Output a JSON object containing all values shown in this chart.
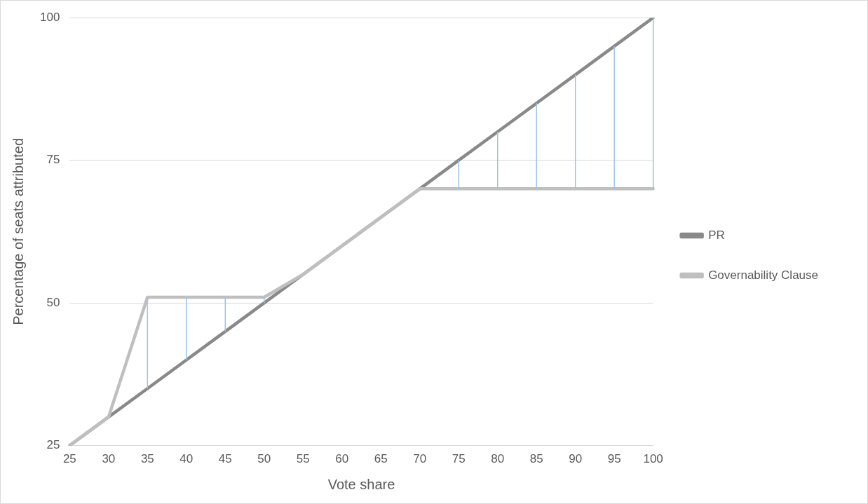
{
  "chart_data": {
    "type": "line",
    "xlabel": "Vote share",
    "ylabel": "Percentage of seats attributed",
    "categories": [
      "25",
      "30",
      "35",
      "40",
      "45",
      "50",
      "55",
      "60",
      "65",
      "70",
      "75",
      "80",
      "85",
      "90",
      "95",
      "100"
    ],
    "series": [
      {
        "name": "PR",
        "color": "#898989",
        "values": [
          25,
          30,
          35,
          40,
          45,
          50,
          55,
          60,
          65,
          70,
          75,
          80,
          85,
          90,
          95,
          100
        ]
      },
      {
        "name": "Governability Clause",
        "color": "#bfbfbf",
        "values": [
          25,
          30,
          51,
          51,
          51,
          51,
          55,
          60,
          65,
          70,
          70,
          70,
          70,
          70,
          70,
          70
        ],
        "errors": [
          null,
          null,
          [
            35,
            51
          ],
          [
            40,
            51
          ],
          [
            45,
            51
          ],
          [
            50,
            51
          ],
          null,
          null,
          null,
          null,
          [
            70,
            75
          ],
          [
            70,
            80
          ],
          [
            70,
            85
          ],
          [
            70,
            90
          ],
          [
            70,
            95
          ],
          [
            70,
            100
          ]
        ]
      }
    ],
    "ylim": [
      25,
      100
    ],
    "yticks": [
      25,
      50,
      75,
      100
    ],
    "grid": "y",
    "legend": "right",
    "marker": "none",
    "line_style": "solid"
  }
}
